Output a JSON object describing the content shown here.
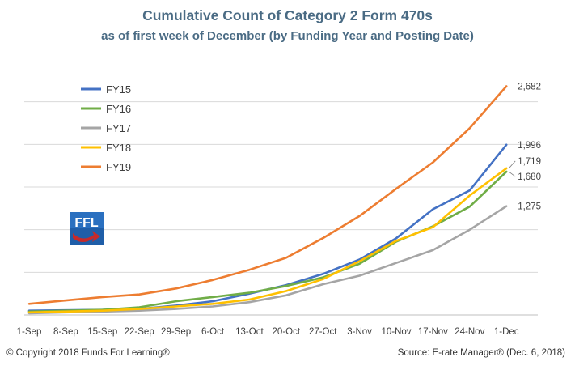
{
  "title": "Cumulative Count of Category 2 Form 470s",
  "subtitle": "as of first week of December (by Funding Year and Posting Date)",
  "footer": {
    "copyright": "© Copyright 2018 Funds For Learning®",
    "source": "Source: E-rate Manager® (Dec. 6, 2018)"
  },
  "logo": {
    "text": "FFL",
    "colors": {
      "blue": "#1f5ea8",
      "red": "#c62a2a"
    }
  },
  "chart_data": {
    "type": "line",
    "categories": [
      "1-Sep",
      "8-Sep",
      "15-Sep",
      "22-Sep",
      "29-Sep",
      "6-Oct",
      "13-Oct",
      "20-Oct",
      "27-Oct",
      "3-Nov",
      "10-Nov",
      "17-Nov",
      "24-Nov",
      "1-Dec"
    ],
    "ylim": [
      0,
      3000
    ],
    "gridlines": [
      0,
      500,
      1000,
      1500,
      2000,
      2500
    ],
    "y_axis_labels_shown": false,
    "legend_position": "top-left",
    "series": [
      {
        "name": "FY15",
        "color": "#4472c4",
        "end_label": "1,996",
        "values": [
          50,
          55,
          60,
          70,
          110,
          160,
          250,
          350,
          480,
          650,
          900,
          1240,
          1460,
          1996
        ]
      },
      {
        "name": "FY16",
        "color": "#70ad47",
        "end_label": "1,680",
        "values": [
          40,
          50,
          60,
          90,
          160,
          210,
          260,
          340,
          440,
          600,
          860,
          1040,
          1270,
          1680
        ]
      },
      {
        "name": "FY17",
        "color": "#a5a5a5",
        "end_label": "1,275",
        "values": [
          20,
          30,
          40,
          50,
          70,
          100,
          150,
          230,
          360,
          460,
          610,
          760,
          1000,
          1275
        ]
      },
      {
        "name": "FY18",
        "color": "#ffc000",
        "end_label": "1,719",
        "values": [
          30,
          40,
          50,
          70,
          100,
          130,
          180,
          280,
          420,
          630,
          870,
          1030,
          1400,
          1719
        ]
      },
      {
        "name": "FY19",
        "color": "#ed7d31",
        "end_label": "2,682",
        "values": [
          130,
          170,
          210,
          240,
          310,
          410,
          530,
          670,
          900,
          1160,
          1480,
          1790,
          2190,
          2682
        ]
      }
    ]
  }
}
